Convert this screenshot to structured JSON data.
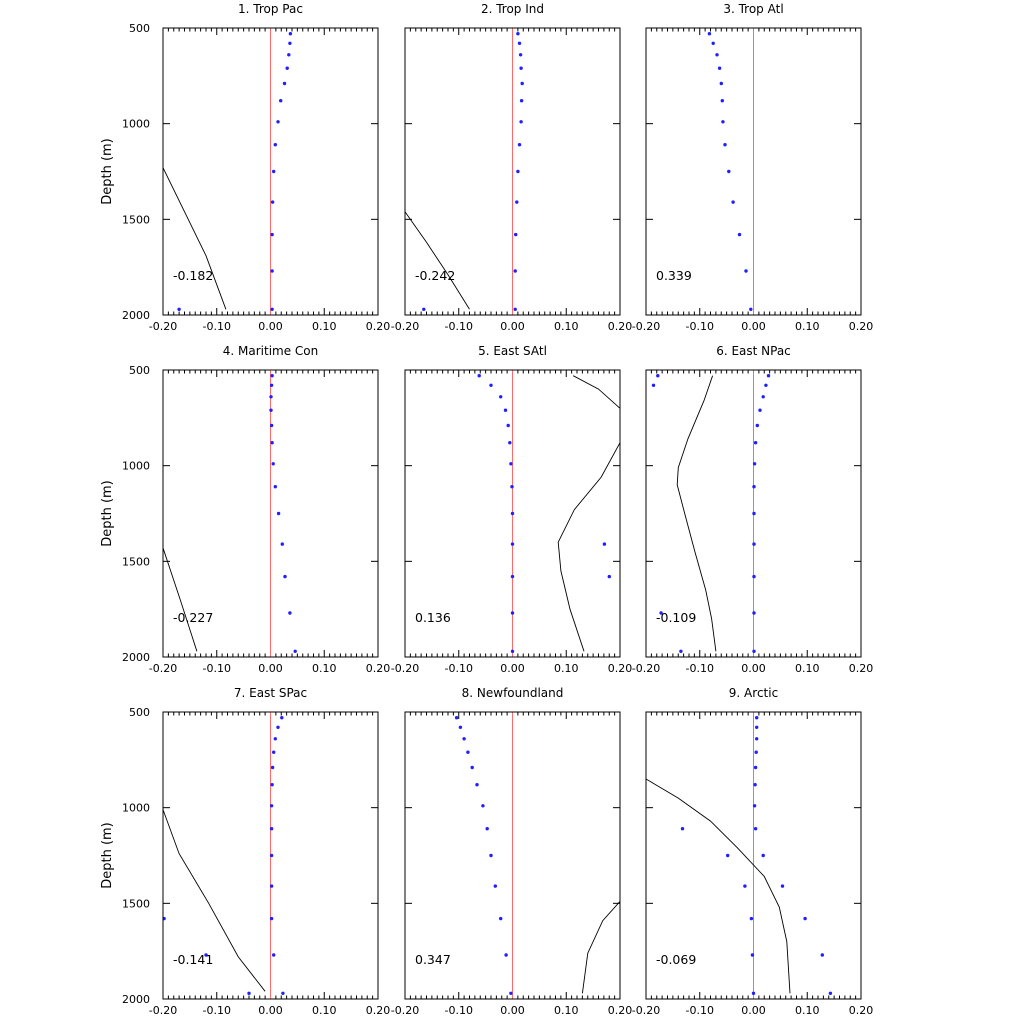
{
  "chart_data": [
    {
      "type": "scatter",
      "title": "1. Trop Pac",
      "ylabel": "Depth (m)",
      "annotation": "-0.182",
      "xlim": [
        -0.2,
        0.2
      ],
      "ylim": [
        500,
        2000
      ],
      "y_inverted": true,
      "xticks": [
        "-0.20",
        "-0.10",
        "0.00",
        "0.10",
        "0.20"
      ],
      "yticks": [
        "500",
        "1000",
        "1500",
        "2000"
      ],
      "points": [
        [
          0.037,
          530
        ],
        [
          0.036,
          580
        ],
        [
          0.034,
          640
        ],
        [
          0.031,
          710
        ],
        [
          0.026,
          790
        ],
        [
          0.019,
          880
        ],
        [
          0.014,
          990
        ],
        [
          0.009,
          1110
        ],
        [
          0.006,
          1250
        ],
        [
          0.004,
          1410
        ],
        [
          0.003,
          1580
        ],
        [
          0.003,
          1770
        ],
        [
          0.003,
          1970
        ],
        [
          -0.17,
          1970
        ]
      ],
      "line": [
        [
          -0.2,
          1230
        ],
        [
          -0.16,
          1460
        ],
        [
          -0.12,
          1690
        ],
        [
          -0.083,
          1970
        ]
      ]
    },
    {
      "type": "scatter",
      "title": "2. Trop Ind",
      "ylabel": "",
      "annotation": "-0.242",
      "xlim": [
        -0.2,
        0.2
      ],
      "ylim": [
        500,
        2000
      ],
      "y_inverted": true,
      "xticks": [
        "-0.20",
        "-0.10",
        "0.00",
        "0.10",
        "0.20"
      ],
      "yticks": [
        "500",
        "1000",
        "1500",
        "2000"
      ],
      "points": [
        [
          0.01,
          530
        ],
        [
          0.013,
          580
        ],
        [
          0.015,
          640
        ],
        [
          0.016,
          710
        ],
        [
          0.018,
          790
        ],
        [
          0.017,
          880
        ],
        [
          0.016,
          990
        ],
        [
          0.013,
          1110
        ],
        [
          0.01,
          1250
        ],
        [
          0.008,
          1410
        ],
        [
          0.006,
          1580
        ],
        [
          0.005,
          1770
        ],
        [
          0.005,
          1970
        ],
        [
          -0.165,
          1970
        ]
      ],
      "line": [
        [
          -0.2,
          1460
        ],
        [
          -0.16,
          1620
        ],
        [
          -0.12,
          1790
        ],
        [
          -0.08,
          1970
        ]
      ]
    },
    {
      "type": "scatter",
      "title": "3. Trop Atl",
      "ylabel": "",
      "annotation": "0.339",
      "xlim": [
        -0.2,
        0.2
      ],
      "ylim": [
        500,
        2000
      ],
      "y_inverted": true,
      "xticks": [
        "-0.20",
        "-0.10",
        "0.00",
        "0.10",
        "0.20"
      ],
      "yticks": [
        "500",
        "1000",
        "1500",
        "2000"
      ],
      "points": [
        [
          -0.082,
          530
        ],
        [
          -0.075,
          580
        ],
        [
          -0.068,
          640
        ],
        [
          -0.063,
          710
        ],
        [
          -0.06,
          790
        ],
        [
          -0.058,
          880
        ],
        [
          -0.057,
          990
        ],
        [
          -0.053,
          1110
        ],
        [
          -0.046,
          1250
        ],
        [
          -0.038,
          1410
        ],
        [
          -0.026,
          1580
        ],
        [
          -0.014,
          1770
        ],
        [
          -0.005,
          1970
        ]
      ],
      "line": []
    },
    {
      "type": "scatter",
      "title": "4. Maritime Con",
      "ylabel": "Depth (m)",
      "annotation": "-0.227",
      "xlim": [
        -0.2,
        0.2
      ],
      "ylim": [
        500,
        2000
      ],
      "y_inverted": true,
      "xticks": [
        "-0.20",
        "-0.10",
        "0.00",
        "0.10",
        "0.20"
      ],
      "yticks": [
        "500",
        "1000",
        "1500",
        "2000"
      ],
      "points": [
        [
          0.003,
          530
        ],
        [
          0.002,
          580
        ],
        [
          0.001,
          640
        ],
        [
          0.001,
          710
        ],
        [
          0.002,
          790
        ],
        [
          0.003,
          880
        ],
        [
          0.005,
          990
        ],
        [
          0.009,
          1110
        ],
        [
          0.015,
          1250
        ],
        [
          0.022,
          1410
        ],
        [
          0.027,
          1580
        ],
        [
          0.036,
          1770
        ],
        [
          0.046,
          1970
        ]
      ],
      "line": [
        [
          -0.2,
          1430
        ],
        [
          -0.168,
          1700
        ],
        [
          -0.137,
          1970
        ]
      ]
    },
    {
      "type": "scatter",
      "title": "5. East SAtl",
      "ylabel": "",
      "annotation": "0.136",
      "xlim": [
        -0.2,
        0.2
      ],
      "ylim": [
        500,
        2000
      ],
      "y_inverted": true,
      "xticks": [
        "-0.20",
        "-0.10",
        "0.00",
        "0.10",
        "0.20"
      ],
      "yticks": [
        "500",
        "1000",
        "1500",
        "2000"
      ],
      "points": [
        [
          -0.062,
          530
        ],
        [
          -0.04,
          580
        ],
        [
          -0.022,
          640
        ],
        [
          -0.013,
          710
        ],
        [
          -0.008,
          790
        ],
        [
          -0.005,
          880
        ],
        [
          -0.003,
          990
        ],
        [
          -0.001,
          1110
        ],
        [
          0.0,
          1250
        ],
        [
          0.0,
          1410
        ],
        [
          0.0,
          1580
        ],
        [
          0.0,
          1770
        ],
        [
          0.0,
          1970
        ],
        [
          0.171,
          1410
        ],
        [
          0.18,
          1580
        ]
      ],
      "line": [
        [
          0.113,
          530
        ],
        [
          0.16,
          600
        ],
        [
          0.2,
          700
        ],
        [
          null,
          null
        ],
        [
          0.2,
          880
        ],
        [
          0.165,
          1060
        ],
        [
          0.115,
          1230
        ],
        [
          0.085,
          1400
        ],
        [
          0.09,
          1550
        ],
        [
          0.107,
          1750
        ],
        [
          0.133,
          1970
        ]
      ]
    },
    {
      "type": "scatter",
      "title": "6. East NPac",
      "ylabel": "",
      "annotation": "-0.109",
      "xlim": [
        -0.2,
        0.2
      ],
      "ylim": [
        500,
        2000
      ],
      "y_inverted": true,
      "xticks": [
        "-0.20",
        "-0.10",
        "0.00",
        "0.10",
        "0.20"
      ],
      "yticks": [
        "500",
        "1000",
        "1500",
        "2000"
      ],
      "points": [
        [
          0.028,
          530
        ],
        [
          0.023,
          580
        ],
        [
          0.018,
          640
        ],
        [
          0.012,
          710
        ],
        [
          0.007,
          790
        ],
        [
          0.004,
          880
        ],
        [
          0.002,
          990
        ],
        [
          0.001,
          1110
        ],
        [
          0.001,
          1250
        ],
        [
          0.001,
          1410
        ],
        [
          0.001,
          1580
        ],
        [
          0.001,
          1770
        ],
        [
          0.001,
          1970
        ],
        [
          -0.178,
          530
        ],
        [
          -0.186,
          580
        ],
        [
          -0.172,
          1770
        ],
        [
          -0.135,
          1970
        ]
      ],
      "line": [
        [
          -0.076,
          530
        ],
        [
          -0.092,
          660
        ],
        [
          -0.122,
          860
        ],
        [
          -0.14,
          1010
        ],
        [
          -0.142,
          1100
        ],
        [
          -0.128,
          1250
        ],
        [
          -0.109,
          1450
        ],
        [
          -0.089,
          1650
        ],
        [
          -0.078,
          1800
        ],
        [
          -0.07,
          1970
        ]
      ]
    },
    {
      "type": "scatter",
      "title": "7. East SPac",
      "ylabel": "Depth (m)",
      "annotation": "-0.141",
      "xlim": [
        -0.2,
        0.2
      ],
      "ylim": [
        500,
        2000
      ],
      "y_inverted": true,
      "xticks": [
        "-0.20",
        "-0.10",
        "0.00",
        "0.10",
        "0.20"
      ],
      "yticks": [
        "500",
        "1000",
        "1500",
        "2000"
      ],
      "points": [
        [
          0.021,
          530
        ],
        [
          0.014,
          580
        ],
        [
          0.009,
          640
        ],
        [
          0.006,
          710
        ],
        [
          0.004,
          790
        ],
        [
          0.003,
          880
        ],
        [
          0.002,
          990
        ],
        [
          0.002,
          1110
        ],
        [
          0.002,
          1250
        ],
        [
          0.002,
          1410
        ],
        [
          0.002,
          1580
        ],
        [
          0.006,
          1770
        ],
        [
          0.023,
          1970
        ],
        [
          -0.198,
          1580
        ],
        [
          -0.12,
          1770
        ],
        [
          -0.04,
          1970
        ]
      ],
      "line": [
        [
          -0.2,
          1010
        ],
        [
          -0.17,
          1240
        ],
        [
          -0.115,
          1500
        ],
        [
          -0.06,
          1780
        ],
        [
          -0.01,
          1960
        ]
      ]
    },
    {
      "type": "scatter",
      "title": "8. Newfoundland",
      "ylabel": "",
      "annotation": "0.347",
      "xlim": [
        -0.2,
        0.2
      ],
      "ylim": [
        500,
        2000
      ],
      "y_inverted": true,
      "xticks": [
        "-0.20",
        "-0.10",
        "0.00",
        "0.10",
        "0.20"
      ],
      "yticks": [
        "500",
        "1000",
        "1500",
        "2000"
      ],
      "points": [
        [
          -0.104,
          530
        ],
        [
          -0.097,
          580
        ],
        [
          -0.09,
          640
        ],
        [
          -0.083,
          710
        ],
        [
          -0.075,
          790
        ],
        [
          -0.066,
          880
        ],
        [
          -0.055,
          990
        ],
        [
          -0.047,
          1110
        ],
        [
          -0.04,
          1250
        ],
        [
          -0.032,
          1410
        ],
        [
          -0.022,
          1580
        ],
        [
          -0.012,
          1770
        ],
        [
          -0.003,
          1970
        ]
      ],
      "line": [
        [
          0.13,
          1970
        ],
        [
          0.14,
          1760
        ],
        [
          0.168,
          1590
        ],
        [
          0.2,
          1490
        ]
      ]
    },
    {
      "type": "scatter",
      "title": "9. Arctic",
      "ylabel": "",
      "annotation": "-0.069",
      "xlim": [
        -0.2,
        0.2
      ],
      "ylim": [
        500,
        2000
      ],
      "y_inverted": true,
      "xticks": [
        "-0.20",
        "-0.10",
        "0.00",
        "0.10",
        "0.20"
      ],
      "yticks": [
        "500",
        "1000",
        "1500",
        "2000"
      ],
      "points": [
        [
          0.006,
          530
        ],
        [
          0.006,
          580
        ],
        [
          0.006,
          640
        ],
        [
          0.005,
          710
        ],
        [
          0.004,
          790
        ],
        [
          0.003,
          880
        ],
        [
          0.002,
          990
        ],
        [
          0.004,
          1110
        ],
        [
          0.018,
          1250
        ],
        [
          0.054,
          1410
        ],
        [
          0.096,
          1580
        ],
        [
          0.128,
          1770
        ],
        [
          0.143,
          1970
        ],
        [
          -0.132,
          1110
        ],
        [
          -0.048,
          1250
        ],
        [
          -0.016,
          1410
        ],
        [
          -0.004,
          1580
        ],
        [
          -0.002,
          1770
        ],
        [
          0.0,
          1970
        ]
      ],
      "line": [
        [
          -0.2,
          850
        ],
        [
          -0.14,
          950
        ],
        [
          -0.08,
          1070
        ],
        [
          -0.03,
          1210
        ],
        [
          0.02,
          1360
        ],
        [
          0.048,
          1520
        ],
        [
          0.062,
          1700
        ],
        [
          0.068,
          1970
        ]
      ]
    }
  ]
}
